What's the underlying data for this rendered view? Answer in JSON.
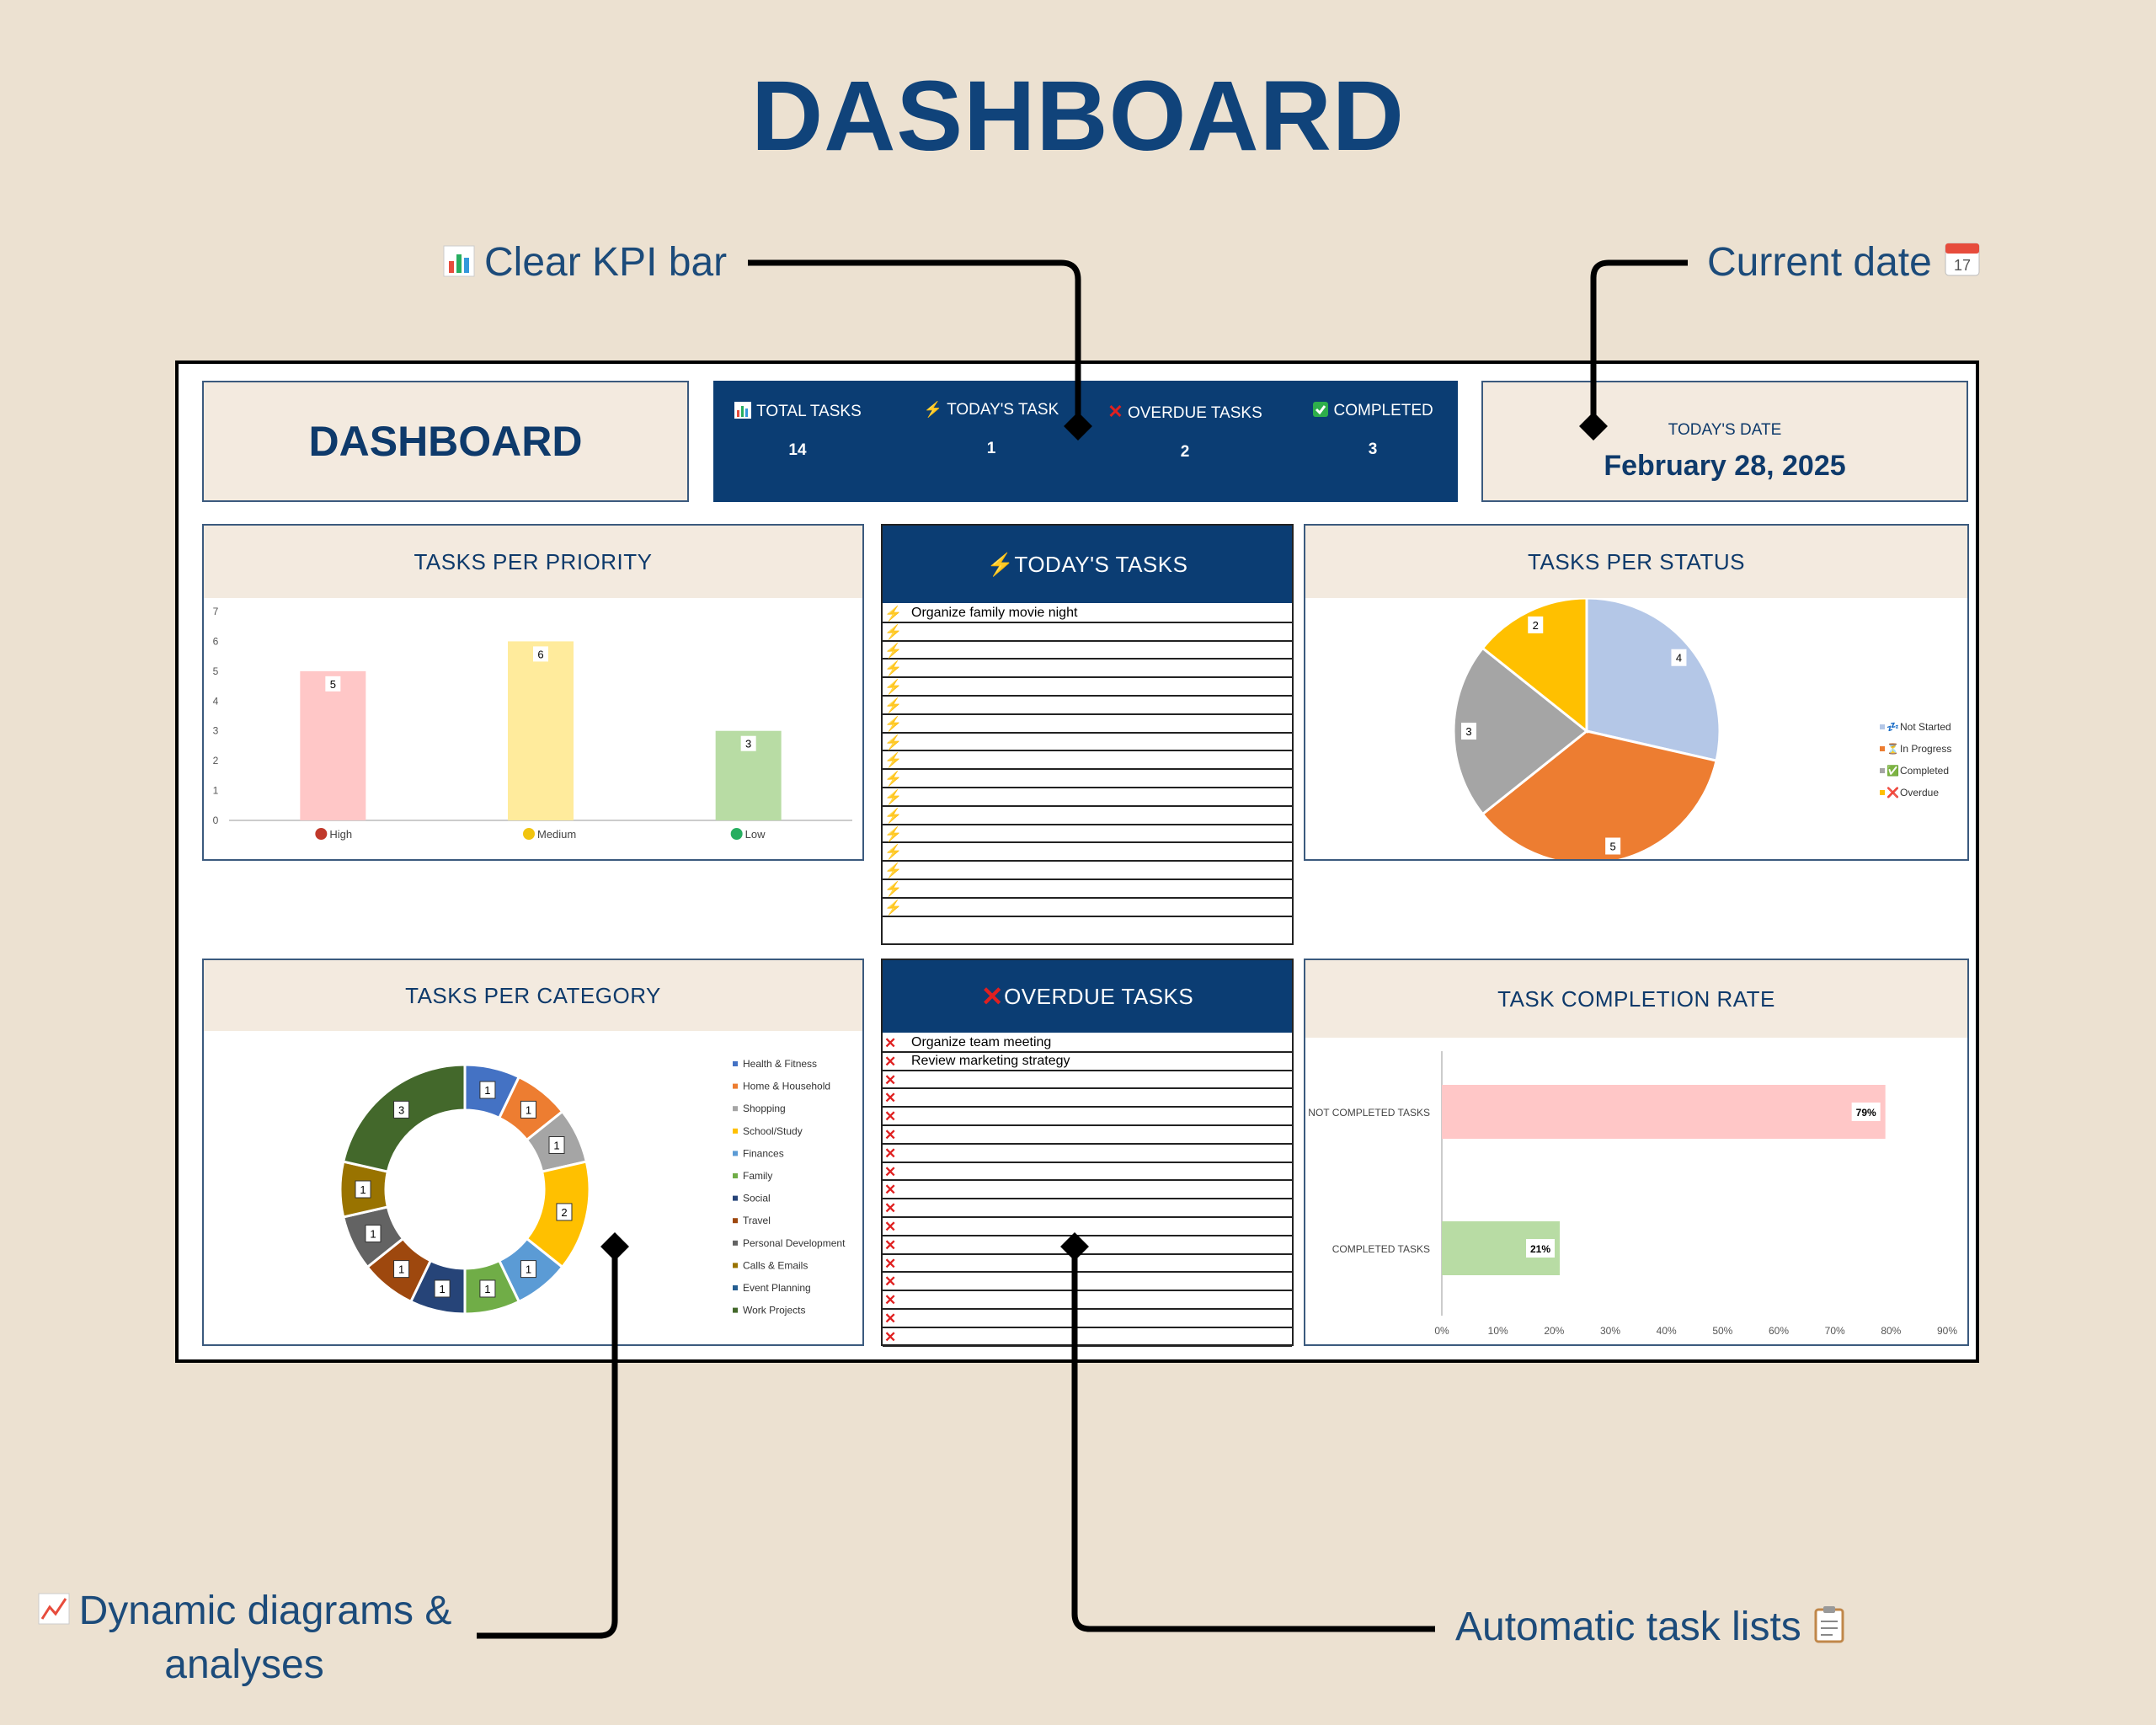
{
  "page_title": "DASHBOARD",
  "callouts": {
    "kpi": "Clear KPI bar",
    "date": "Current date",
    "diagrams_line1": "Dynamic diagrams &",
    "diagrams_line2": "analyses",
    "lists": "Automatic task lists"
  },
  "header": {
    "title": "DASHBOARD",
    "kpis": [
      {
        "label": "TOTAL TASKS",
        "value": "14",
        "icon": "bar-chart-icon"
      },
      {
        "label": "TODAY'S TASK",
        "value": "1",
        "icon": "lightning-icon"
      },
      {
        "label": "OVERDUE TASKS",
        "value": "2",
        "icon": "cross-icon"
      },
      {
        "label": "COMPLETED",
        "value": "3",
        "icon": "checkmark-icon"
      }
    ],
    "date_label": "TODAY'S DATE",
    "date_value": "February 28, 2025"
  },
  "panels": {
    "priority_title": "TASKS PER PRIORITY",
    "today_title": "TODAY'S TASKS",
    "status_title": "TASKS PER STATUS",
    "category_title": "TASKS PER CATEGORY",
    "overdue_title": "OVERDUE TASKS",
    "completion_title": "TASK COMPLETION RATE"
  },
  "today_tasks": [
    "Organize family movie night",
    "",
    "",
    "",
    "",
    "",
    "",
    "",
    "",
    "",
    "",
    "",
    "",
    "",
    "",
    "",
    ""
  ],
  "overdue_tasks": [
    "Organize team meeting",
    "Review marketing strategy",
    "",
    "",
    "",
    "",
    "",
    "",
    "",
    "",
    "",
    "",
    "",
    "",
    "",
    "",
    ""
  ],
  "colors": {
    "navy": "#0b3d73",
    "beige": "#f3eadf",
    "background": "#ece1d1"
  },
  "chart_data": [
    {
      "type": "bar",
      "categories": [
        "High",
        "Medium",
        "Low"
      ],
      "values": [
        5,
        6,
        3
      ],
      "colors": [
        "#ffc7c7",
        "#ffeb9c",
        "#b8dca4"
      ],
      "legend_dots": [
        "#c0392b",
        "#f1c40f",
        "#27ae60"
      ],
      "ylim": [
        0,
        7
      ],
      "yticks": [
        "0",
        "1",
        "2",
        "3",
        "4",
        "5",
        "6",
        "7"
      ],
      "grid": false
    },
    {
      "type": "pie",
      "categories": [
        "Not Started",
        "In Progress",
        "Completed",
        "Overdue"
      ],
      "values": [
        4,
        5,
        3,
        2
      ],
      "colors": [
        "#b4c7e7",
        "#ed7d31",
        "#a5a5a5",
        "#ffc000"
      ],
      "legend": "right"
    },
    {
      "type": "pie",
      "donut": true,
      "categories": [
        "Health & Fitness",
        "Home & Household",
        "Shopping",
        "School/Study",
        "Finances",
        "Family",
        "Social",
        "Travel",
        "Personal Development",
        "Calls & Emails",
        "Event Planning",
        "Work Projects"
      ],
      "values": [
        1,
        1,
        1,
        2,
        1,
        1,
        1,
        1,
        1,
        1,
        0,
        3
      ],
      "colors": [
        "#4472c4",
        "#ed7d31",
        "#a5a5a5",
        "#ffc000",
        "#5b9bd5",
        "#70ad47",
        "#264478",
        "#9e480e",
        "#636363",
        "#997300",
        "#255e91",
        "#43682b"
      ],
      "legend": "right"
    },
    {
      "type": "bar",
      "orientation": "horizontal",
      "categories": [
        "NOT COMPLETED TASKS",
        "COMPLETED TASKS"
      ],
      "values": [
        79,
        21
      ],
      "value_labels": [
        "79%",
        "21%"
      ],
      "colors": [
        "#ffc7c7",
        "#b8dca4"
      ],
      "xlim": [
        0,
        90
      ],
      "xticks": [
        "0%",
        "10%",
        "20%",
        "30%",
        "40%",
        "50%",
        "60%",
        "70%",
        "80%",
        "90%"
      ]
    }
  ]
}
